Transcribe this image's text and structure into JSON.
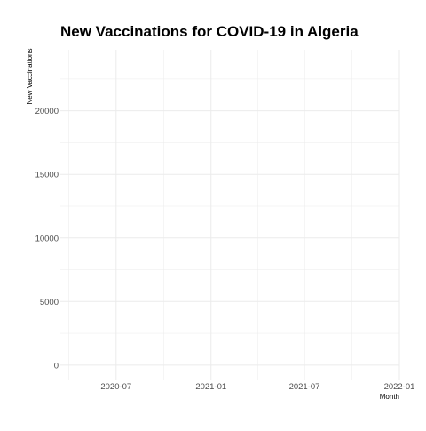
{
  "chart_data": {
    "type": "line",
    "title": "New Vaccinations for COVID-19 in Algeria",
    "xlabel": "Month",
    "ylabel": "New Vaccinations",
    "x_tick_labels": [
      "2020-07",
      "2021-01",
      "2021-07",
      "2022-01"
    ],
    "x_ticks": [
      "2020-07-01",
      "2021-01-01",
      "2021-07-01",
      "2022-01-01"
    ],
    "y_ticks": [
      0,
      5000,
      10000,
      15000,
      20000
    ],
    "xlim": [
      "2020-03-15",
      "2022-01-01"
    ],
    "ylim": [
      -1200,
      24800
    ],
    "grid": true,
    "series": [
      {
        "x": [],
        "values": []
      }
    ]
  },
  "colors": {
    "grid": "#ebebeb",
    "tick_text": "#4d4d4d",
    "title_text": "#000000"
  }
}
